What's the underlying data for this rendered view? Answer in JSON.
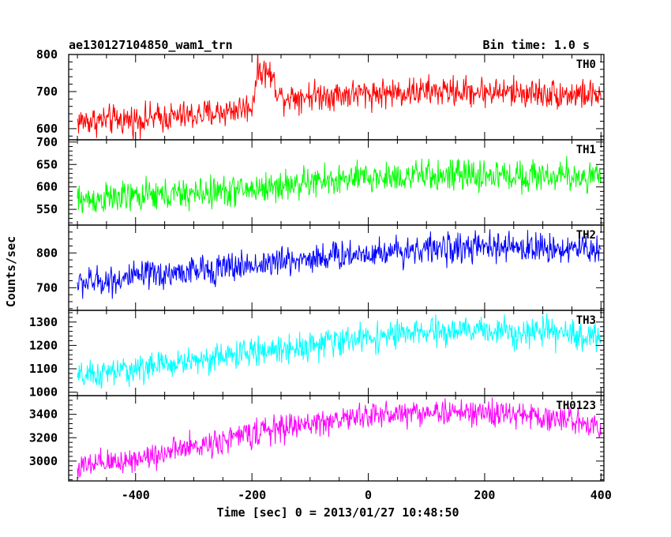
{
  "chart_data": {
    "type": "line",
    "title": "ae130127104850_wam1_trn",
    "subtitle": "Bin time: 1.0 s",
    "xlabel": "Time [sec] 0 = 2013/01/27 10:48:50",
    "ylabel": "Counts/sec",
    "xlim": [
      -515,
      405
    ],
    "xticks": [
      -400,
      -200,
      0,
      200,
      400
    ],
    "bin_time_s": 1.0,
    "grid": false,
    "panels": [
      {
        "name": "TH0",
        "color": "#ff0000",
        "ylim": [
          570,
          800
        ],
        "yticks": [
          600,
          700,
          800
        ],
        "x": [
          -500,
          -400,
          -300,
          -250,
          -200,
          -190,
          -170,
          -150,
          -100,
          0,
          100,
          200,
          300,
          400
        ],
        "y": [
          620,
          625,
          635,
          645,
          660,
          760,
          750,
          685,
          690,
          695,
          700,
          700,
          695,
          690
        ],
        "noise_amplitude": 30
      },
      {
        "name": "TH1",
        "color": "#00ff00",
        "ylim": [
          515,
          705
        ],
        "yticks": [
          550,
          600,
          650,
          700
        ],
        "x": [
          -500,
          -400,
          -300,
          -200,
          -100,
          0,
          100,
          200,
          300,
          400
        ],
        "y": [
          570,
          578,
          585,
          595,
          610,
          620,
          625,
          625,
          625,
          622
        ],
        "noise_amplitude": 26
      },
      {
        "name": "TH2",
        "color": "#0000ff",
        "ylim": [
          635,
          880
        ],
        "yticks": [
          700,
          800
        ],
        "x": [
          -500,
          -400,
          -300,
          -200,
          -100,
          0,
          100,
          200,
          300,
          400
        ],
        "y": [
          712,
          730,
          748,
          765,
          785,
          800,
          812,
          815,
          815,
          810
        ],
        "noise_amplitude": 32
      },
      {
        "name": "TH3",
        "color": "#00ffff",
        "ylim": [
          985,
          1350
        ],
        "yticks": [
          1000,
          1100,
          1200,
          1300
        ],
        "x": [
          -500,
          -400,
          -300,
          -200,
          -100,
          0,
          100,
          200,
          300,
          400
        ],
        "y": [
          1060,
          1100,
          1135,
          1170,
          1200,
          1235,
          1255,
          1265,
          1255,
          1235
        ],
        "noise_amplitude": 45
      },
      {
        "name": "TH0123",
        "color": "#ff00ff",
        "ylim": [
          2830,
          3560
        ],
        "yticks": [
          3000,
          3200,
          3400
        ],
        "x": [
          -500,
          -400,
          -300,
          -200,
          -100,
          0,
          100,
          200,
          300,
          400
        ],
        "y": [
          2940,
          3020,
          3120,
          3240,
          3320,
          3390,
          3420,
          3410,
          3380,
          3310
        ],
        "noise_amplitude": 85
      }
    ]
  }
}
